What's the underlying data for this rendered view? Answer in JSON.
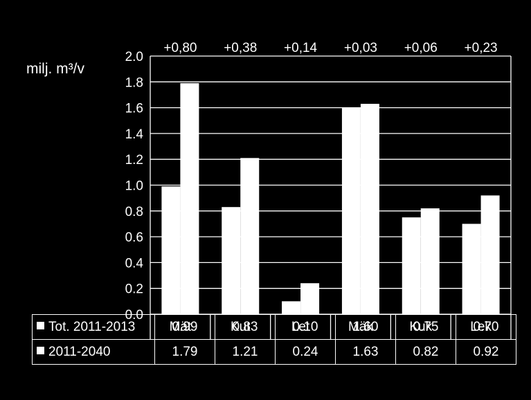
{
  "chart_data": {
    "type": "bar",
    "title": "",
    "xlabel": "",
    "ylabel": "milj. m³/v",
    "ylim": [
      0,
      2.0
    ],
    "yticks": [
      "0.0",
      "0.2",
      "0.4",
      "0.6",
      "0.8",
      "1.0",
      "1.2",
      "1.4",
      "1.6",
      "1.8",
      "2.0"
    ],
    "grid": true,
    "categories": [
      "Mät",
      "Kut",
      "Let",
      "Mäk",
      "Kuk",
      "Lek"
    ],
    "series": [
      {
        "name": "Tot. 2011-2013",
        "values": [
          0.99,
          0.83,
          0.1,
          1.6,
          0.75,
          0.7
        ],
        "labels": [
          "0.99",
          "0.83",
          "0.10",
          "1.60",
          "0.75",
          "0.70"
        ]
      },
      {
        "name": "2011-2040",
        "values": [
          1.79,
          1.21,
          0.24,
          1.63,
          0.82,
          0.92
        ],
        "labels": [
          "1.79",
          "1.21",
          "0.24",
          "1.63",
          "0.82",
          "0.92"
        ]
      }
    ],
    "annotations": [
      "+0,80",
      "+0,38",
      "+0,14",
      "+0,03",
      "+0,06",
      "+0,23"
    ],
    "legend": "data-table",
    "colors": {
      "background": "#000000",
      "bars": "#ffffff",
      "grid": "#ffffff",
      "text": "#ffffff"
    }
  }
}
